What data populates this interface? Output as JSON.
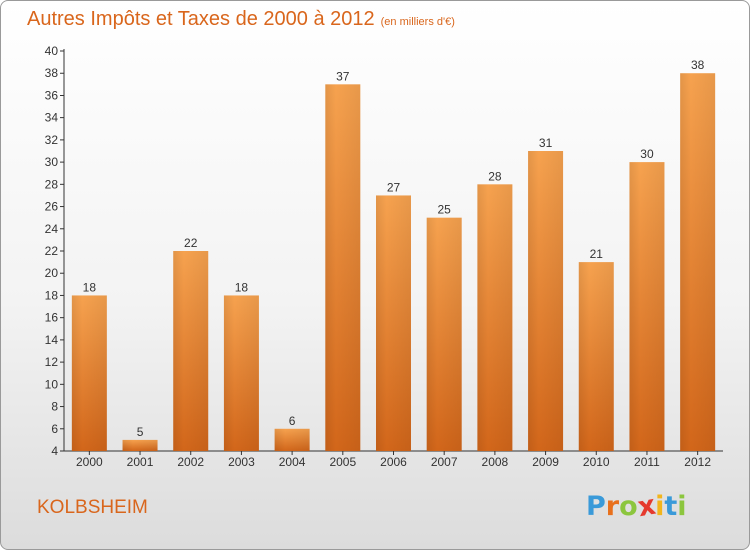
{
  "chart_data": {
    "type": "bar",
    "title": "Autres Impôts et Taxes de 2000 à 2012",
    "unit": "(en milliers d'€)",
    "categories": [
      "2000",
      "2001",
      "2002",
      "2003",
      "2004",
      "2005",
      "2006",
      "2007",
      "2008",
      "2009",
      "2010",
      "2011",
      "2012"
    ],
    "values": [
      18,
      5,
      22,
      18,
      6,
      37,
      27,
      25,
      28,
      31,
      21,
      30,
      38
    ],
    "ylim": [
      4,
      40
    ],
    "yticks": [
      4,
      6,
      8,
      10,
      12,
      14,
      16,
      18,
      20,
      22,
      24,
      26,
      28,
      30,
      32,
      34,
      36,
      38,
      40
    ],
    "grid": false,
    "bar_color_top": "#f6a24f",
    "bar_color_bottom": "#d2661a"
  },
  "commune": "KOLBSHEIM",
  "logo": {
    "letters": [
      "P",
      "r",
      "o",
      "x",
      "i",
      "t",
      "i"
    ],
    "colors": [
      "#3a9ad9",
      "#e8701c",
      "#8cc63e",
      "#e53a2e",
      "#f2b51c",
      "#3a9ad9",
      "#8cc63e"
    ]
  },
  "colors": {
    "accent": "#d9661c",
    "axis": "#333333"
  }
}
